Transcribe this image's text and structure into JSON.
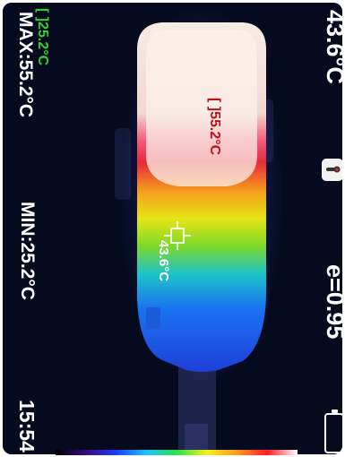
{
  "readout": {
    "center_temperature": "43.6°C",
    "emissivity": "e=0.95",
    "time": "15:54",
    "max": "MAX:55.2°C",
    "min": "MIN:25.2°C",
    "min_spot": "[ ]25.2°C",
    "hot_spot": "[ ]55.2°C",
    "center_crosshair": "43.6°C"
  },
  "icons": {
    "thermometer": "thermometer-icon",
    "battery": "battery-icon",
    "crosshair": "crosshair-icon"
  },
  "colors": {
    "background": "#060a1f",
    "hud_text": "#ffffff",
    "min_text": "#2bd42b",
    "hot_spot_text": "#c0111a"
  }
}
